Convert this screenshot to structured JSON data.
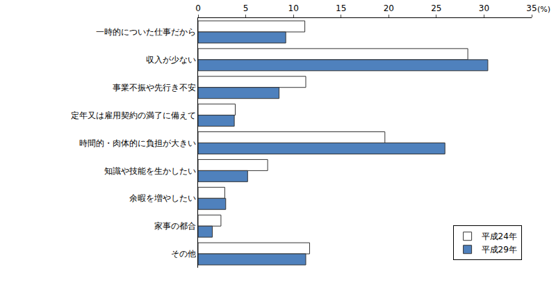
{
  "chart_data": {
    "type": "bar",
    "orientation": "horizontal",
    "categories": [
      "一時的についた仕事だから",
      "収入が少ない",
      "事業不振や先行き不安",
      "定年又は雇用契約の満了に備えて",
      "時間的・肉体的に負担が大きい",
      "知識や技能を生かしたい",
      "余暇を増やしたい",
      "家事の都合",
      "その他"
    ],
    "series": [
      {
        "name": "平成24年",
        "color": "#ffffff",
        "values": [
          11.2,
          28.3,
          11.3,
          3.9,
          19.6,
          7.3,
          2.8,
          2.4,
          11.7
        ]
      },
      {
        "name": "平成29年",
        "color": "#4f81bd",
        "values": [
          9.2,
          30.4,
          8.5,
          3.8,
          25.9,
          5.2,
          2.9,
          1.5,
          11.3
        ]
      }
    ],
    "xlim": [
      0,
      35
    ],
    "xticks": [
      0,
      5,
      10,
      15,
      20,
      25,
      30,
      35
    ],
    "annotations": [
      "(%)"
    ],
    "legend": "lower right",
    "grid": false
  }
}
